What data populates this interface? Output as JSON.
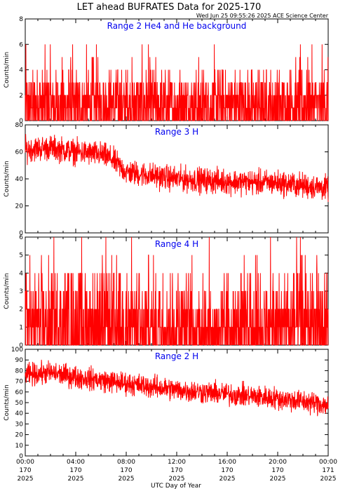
{
  "header": {
    "title": "LET ahead BUFRATES Data for 2025-170",
    "timestamp": "Wed Jun 25 09:55:26 2025 ACE Science Center"
  },
  "x_axis": {
    "label": "UTC Day of Year",
    "ticks": [
      {
        "time": "00:00",
        "doy": "170",
        "year": "2025"
      },
      {
        "time": "04:00",
        "doy": "170",
        "year": "2025"
      },
      {
        "time": "08:00",
        "doy": "170",
        "year": "2025"
      },
      {
        "time": "12:00",
        "doy": "170",
        "year": "2025"
      },
      {
        "time": "16:00",
        "doy": "170",
        "year": "2025"
      },
      {
        "time": "20:00",
        "doy": "170",
        "year": "2025"
      },
      {
        "time": "00:00",
        "doy": "171",
        "year": "2025"
      }
    ]
  },
  "colors": {
    "series": "#ff0000",
    "panel_title": "#0000ee",
    "axes": "#000000"
  },
  "chart_data": [
    {
      "type": "line",
      "title": "Range 2 He4 and He background",
      "xlabel": "",
      "ylabel": "Counts/min",
      "xlim": [
        0,
        24
      ],
      "ylim": [
        0,
        8
      ],
      "yticks": [
        0,
        2,
        4,
        6,
        8
      ],
      "x_units": "hours UTC",
      "series_profile": {
        "x": [
          0,
          4,
          8,
          12,
          16,
          20,
          24
        ],
        "baseline": [
          1.5,
          1.5,
          1.5,
          1.5,
          1.5,
          1.5,
          1.5
        ],
        "min": 0,
        "max": 8,
        "spread": 1.5,
        "integer": true
      }
    },
    {
      "type": "line",
      "title": "Range 3 H",
      "xlabel": "",
      "ylabel": "Counts/min",
      "xlim": [
        0,
        24
      ],
      "ylim": [
        0,
        80
      ],
      "yticks": [
        0,
        20,
        40,
        60,
        80
      ],
      "x_units": "hours UTC",
      "series_profile": {
        "x": [
          0,
          2,
          4,
          6,
          6.8,
          8,
          12,
          16,
          20,
          24
        ],
        "baseline": [
          62,
          63,
          60,
          58,
          55,
          45,
          40,
          38,
          37,
          33
        ],
        "min": 18,
        "max": 80,
        "spread": 7,
        "integer": false
      }
    },
    {
      "type": "line",
      "title": "Range 4 H",
      "xlabel": "",
      "ylabel": "Counts/min",
      "xlim": [
        0,
        24
      ],
      "ylim": [
        0,
        6
      ],
      "yticks": [
        0,
        1,
        2,
        3,
        4,
        5,
        6
      ],
      "x_units": "hours UTC",
      "series_profile": {
        "x": [
          0,
          4,
          8,
          12,
          16,
          20,
          24
        ],
        "baseline": [
          1.2,
          1.2,
          1.0,
          0.9,
          0.9,
          0.9,
          0.9
        ],
        "min": 0,
        "max": 6,
        "spread": 1.0,
        "integer": true
      }
    },
    {
      "type": "line",
      "title": "Range 2 H",
      "xlabel": "",
      "ylabel": "Counts/min",
      "xlim": [
        0,
        24
      ],
      "ylim": [
        0,
        100
      ],
      "yticks": [
        0,
        10,
        20,
        30,
        40,
        50,
        60,
        70,
        80,
        90,
        100
      ],
      "x_units": "hours UTC",
      "series_profile": {
        "x": [
          0,
          2,
          4,
          8,
          12,
          16,
          20,
          24
        ],
        "baseline": [
          76,
          78,
          74,
          68,
          62,
          58,
          54,
          48
        ],
        "min": 25,
        "max": 100,
        "spread": 8,
        "integer": false
      }
    }
  ]
}
